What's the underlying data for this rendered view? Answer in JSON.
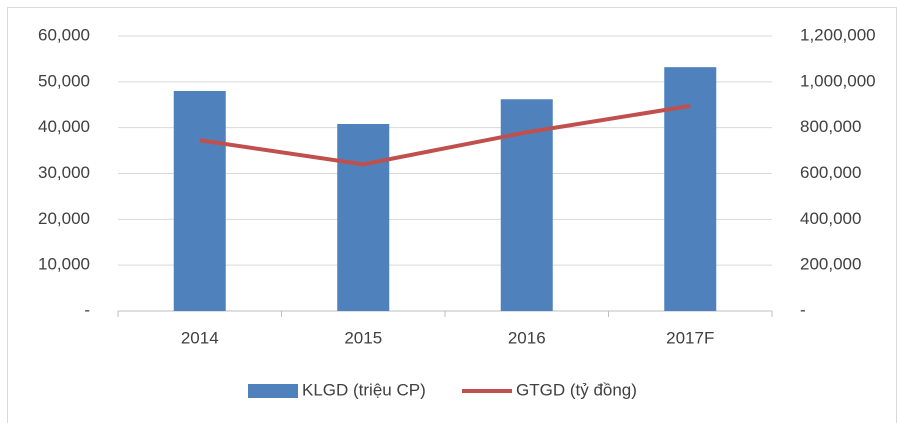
{
  "chart_data": {
    "type": "bar",
    "categories": [
      "2014",
      "2015",
      "2016",
      "2017F"
    ],
    "series": [
      {
        "name": "KLGD (triệu CP)",
        "type": "bar",
        "color": "#4f81bd",
        "values": [
          48000,
          40800,
          46200,
          53200
        ]
      },
      {
        "name": "GTGD (tỷ đồng)",
        "type": "line",
        "axis": "y2",
        "color": "#c0504d",
        "values": [
          745000,
          640000,
          780000,
          895000
        ]
      }
    ],
    "ylim": [
      0,
      60000
    ],
    "yticks": [
      {
        "value": 0,
        "label": "-"
      },
      {
        "value": 10000,
        "label": "10,000"
      },
      {
        "value": 20000,
        "label": "20,000"
      },
      {
        "value": 30000,
        "label": "30,000"
      },
      {
        "value": 40000,
        "label": "40,000"
      },
      {
        "value": 50000,
        "label": "50,000"
      },
      {
        "value": 60000,
        "label": "60,000"
      }
    ],
    "y2lim": [
      0,
      1200000
    ],
    "y2ticks": [
      {
        "value": 0,
        "label": "-"
      },
      {
        "value": 200000,
        "label": "200,000"
      },
      {
        "value": 400000,
        "label": "400,000"
      },
      {
        "value": 600000,
        "label": "600,000"
      },
      {
        "value": 800000,
        "label": "800,000"
      },
      {
        "value": 1000000,
        "label": "1,000,000"
      },
      {
        "value": 1200000,
        "label": "1,200,000"
      }
    ],
    "grid": true,
    "legend": "bottom"
  }
}
